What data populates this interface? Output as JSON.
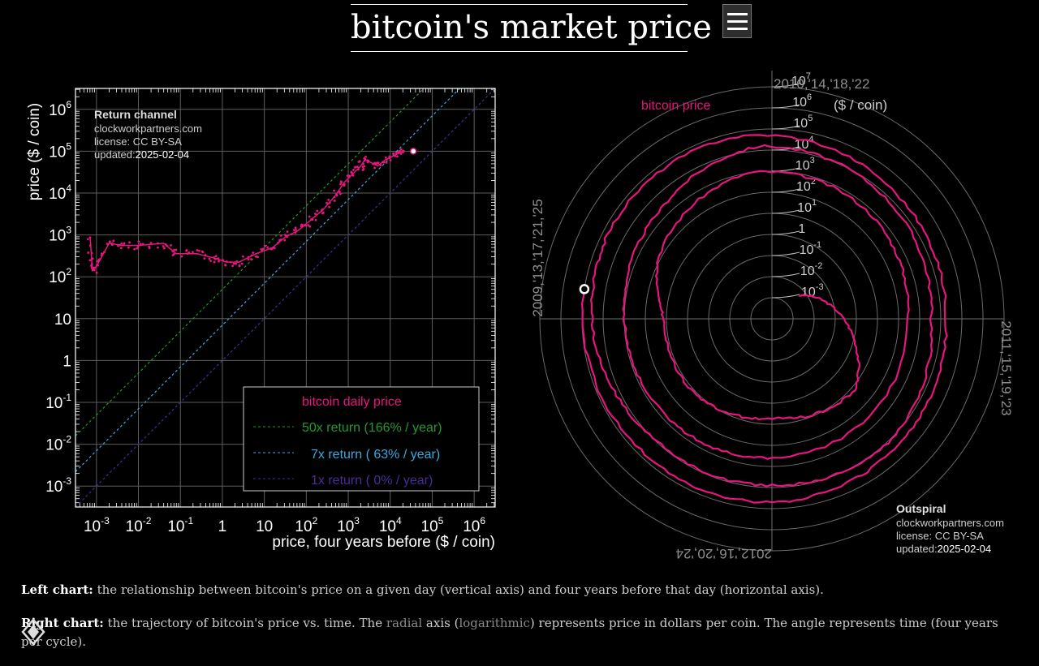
{
  "page": {
    "title": "bitcoin's market price",
    "menu_icon": "hamburger-menu-icon"
  },
  "chart_data": [
    {
      "type": "scatter",
      "name": "Return channel",
      "title": "Return channel",
      "source": "clockworkpartners.com",
      "license": "license: CC BY-SA",
      "updated_label": "updated:",
      "updated": "2025-02-04",
      "xlabel": "price, four years before ($ / coin)",
      "ylabel": "price ($ / coin)",
      "xlim_log10": [
        -3.5,
        6.5
      ],
      "ylim_log10": [
        -3.5,
        6.5
      ],
      "x_ticks": [
        {
          "base": "10",
          "exp": "-3",
          "v": -3
        },
        {
          "base": "10",
          "exp": "-2",
          "v": -2
        },
        {
          "base": "10",
          "exp": "-1",
          "v": -1
        },
        {
          "base": "1",
          "exp": "",
          "v": 0
        },
        {
          "base": "10",
          "exp": "",
          "v": 1
        },
        {
          "base": "10",
          "exp": "2",
          "v": 2
        },
        {
          "base": "10",
          "exp": "3",
          "v": 3
        },
        {
          "base": "10",
          "exp": "4",
          "v": 4
        },
        {
          "base": "10",
          "exp": "5",
          "v": 5
        },
        {
          "base": "10",
          "exp": "6",
          "v": 6
        }
      ],
      "y_ticks": [
        {
          "base": "10",
          "exp": "-3",
          "v": -3
        },
        {
          "base": "10",
          "exp": "-2",
          "v": -2
        },
        {
          "base": "10",
          "exp": "-1",
          "v": -1
        },
        {
          "base": "1",
          "exp": "",
          "v": 0
        },
        {
          "base": "10",
          "exp": "",
          "v": 1
        },
        {
          "base": "10",
          "exp": "2",
          "v": 2
        },
        {
          "base": "10",
          "exp": "3",
          "v": 3
        },
        {
          "base": "10",
          "exp": "4",
          "v": 4
        },
        {
          "base": "10",
          "exp": "5",
          "v": 5
        },
        {
          "base": "10",
          "exp": "6",
          "v": 6
        }
      ],
      "grid": true,
      "legend_position": "bottom-right",
      "series": [
        {
          "name": "bitcoin daily price",
          "color": "#e8157f",
          "points_log10": [
            [
              -3.15,
              2.95
            ],
            [
              -3.1,
              2.15
            ],
            [
              -3.0,
              2.25
            ],
            [
              -2.7,
              2.8
            ],
            [
              -2.4,
              2.75
            ],
            [
              -2.0,
              2.75
            ],
            [
              -1.4,
              2.8
            ],
            [
              -1.1,
              2.55
            ],
            [
              -0.6,
              2.55
            ],
            [
              -0.2,
              2.45
            ],
            [
              0.1,
              2.35
            ],
            [
              0.4,
              2.35
            ],
            [
              0.8,
              2.55
            ],
            [
              1.2,
              2.7
            ],
            [
              1.5,
              2.95
            ],
            [
              1.8,
              3.1
            ],
            [
              2.1,
              3.35
            ],
            [
              2.4,
              3.6
            ],
            [
              2.7,
              3.95
            ],
            [
              2.9,
              4.25
            ],
            [
              3.1,
              4.45
            ],
            [
              3.3,
              4.65
            ],
            [
              3.4,
              4.8
            ],
            [
              3.7,
              4.65
            ],
            [
              3.9,
              4.8
            ],
            [
              4.2,
              4.95
            ],
            [
              4.35,
              5.0
            ]
          ]
        },
        {
          "name": "50x return (166% / year)",
          "color": "#1f9a2a",
          "slope_log10": 1.699
        },
        {
          "name": "7x return ( 63% / year)",
          "color": "#3aa9e0",
          "slope_log10": 0.845
        },
        {
          "name": "1x return (  0% / year)",
          "color": "#4b2a9a",
          "slope_log10": 0
        }
      ],
      "current_point_log10": [
        4.55,
        5.0
      ]
    },
    {
      "type": "line",
      "name": "Outspiral",
      "title": "Outspiral",
      "source": "clockworkpartners.com",
      "license": "license: CC BY-SA",
      "updated_label": "updated:",
      "updated": "2025-02-04",
      "series_label": "bitcoin price",
      "unit_label": "($ / coin)",
      "angle_labels": {
        "top": "2010,'14,'18,'22",
        "right": "2011,'15,'19,'23",
        "bottom": "2012,'16,'20,'24",
        "left": "2009,'13,'17,'21,'25"
      },
      "radial_ticks": [
        {
          "base": "10",
          "exp": "-3",
          "v": -3
        },
        {
          "base": "10",
          "exp": "-2",
          "v": -2
        },
        {
          "base": "10",
          "exp": "-1",
          "v": -1
        },
        {
          "base": "1",
          "exp": "",
          "v": 0
        },
        {
          "base": "10",
          "exp": "1",
          "v": 1
        },
        {
          "base": "10",
          "exp": "2",
          "v": 2
        },
        {
          "base": "10",
          "exp": "3",
          "v": 3
        },
        {
          "base": "10",
          "exp": "4",
          "v": 4
        },
        {
          "base": "10",
          "exp": "5",
          "v": 5
        },
        {
          "base": "10",
          "exp": "6",
          "v": 6
        },
        {
          "base": "10",
          "exp": "7",
          "v": 7
        }
      ],
      "radial_range_log10": [
        -4,
        7
      ],
      "years_per_cycle": 4,
      "trajectory": [
        {
          "t": 2010.55,
          "log10_price": -2.3
        },
        {
          "t": 2011.0,
          "log10_price": -0.6
        },
        {
          "t": 2011.45,
          "log10_price": 1.2
        },
        {
          "t": 2012.0,
          "log10_price": 0.7
        },
        {
          "t": 2012.5,
          "log10_price": 1.1
        },
        {
          "t": 2013.0,
          "log10_price": 1.1
        },
        {
          "t": 2013.3,
          "log10_price": 2.1
        },
        {
          "t": 2013.9,
          "log10_price": 3.0
        },
        {
          "t": 2014.5,
          "log10_price": 2.8
        },
        {
          "t": 2015.0,
          "log10_price": 2.45
        },
        {
          "t": 2016.0,
          "log10_price": 2.6
        },
        {
          "t": 2016.5,
          "log10_price": 2.8
        },
        {
          "t": 2017.0,
          "log10_price": 3.0
        },
        {
          "t": 2017.5,
          "log10_price": 3.4
        },
        {
          "t": 2017.95,
          "log10_price": 4.2
        },
        {
          "t": 2018.5,
          "log10_price": 3.85
        },
        {
          "t": 2019.0,
          "log10_price": 3.55
        },
        {
          "t": 2019.5,
          "log10_price": 4.05
        },
        {
          "t": 2020.0,
          "log10_price": 3.9
        },
        {
          "t": 2020.5,
          "log10_price": 3.95
        },
        {
          "t": 2020.95,
          "log10_price": 4.5
        },
        {
          "t": 2021.3,
          "log10_price": 4.75
        },
        {
          "t": 2021.85,
          "log10_price": 4.8
        },
        {
          "t": 2022.5,
          "log10_price": 4.35
        },
        {
          "t": 2023.0,
          "log10_price": 4.25
        },
        {
          "t": 2023.5,
          "log10_price": 4.45
        },
        {
          "t": 2024.0,
          "log10_price": 4.7
        },
        {
          "t": 2024.5,
          "log10_price": 4.8
        },
        {
          "t": 2025.1,
          "log10_price": 5.0
        }
      ],
      "current_point": {
        "t": 2025.1,
        "log10_price": 5.0
      }
    }
  ],
  "captions": {
    "left_label": "Left chart:",
    "left_text": "the relationship between bitcoin's price on a given day (vertical axis) and four years before that day (horizontal axis).",
    "right_label": "Right chart:",
    "right_text_1": "the trajectory of bitcoin's price vs. time. The",
    "right_link_1": "radial",
    "right_text_2": "axis (",
    "right_link_2": "logarithmic",
    "right_text_3": ") represents price in dollars per coin. The angle represents time (four years per cycle)."
  },
  "colors": {
    "price": "#e8157f",
    "grid": "#6a6a6a",
    "background": "#000000"
  }
}
